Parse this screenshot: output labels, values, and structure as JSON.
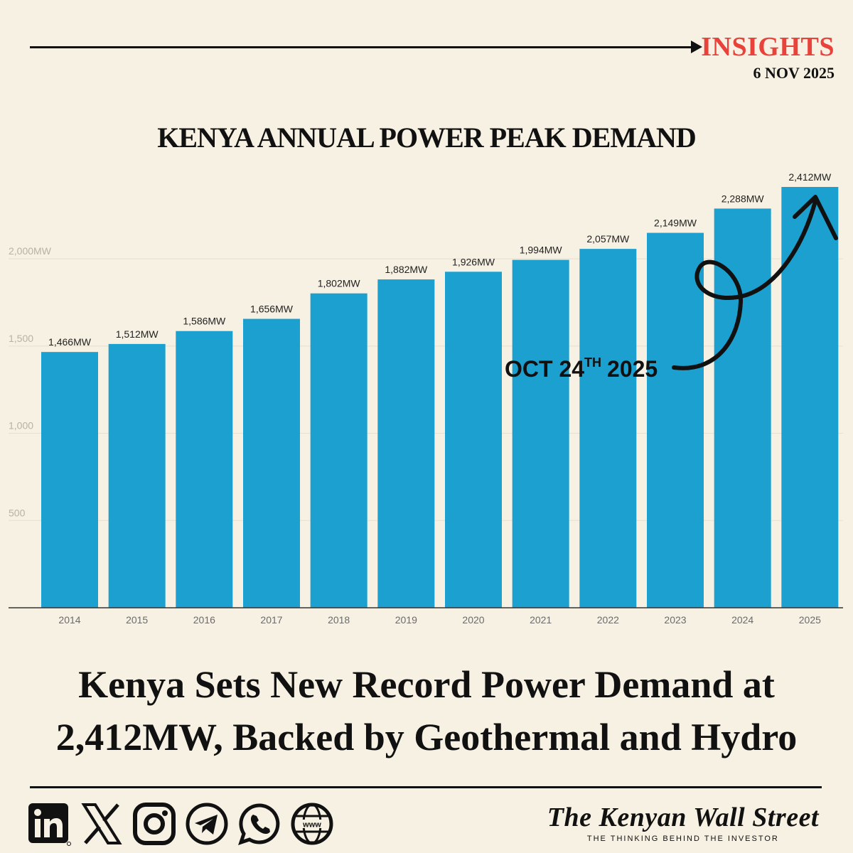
{
  "header": {
    "section": "INSIGHTS",
    "date": "6 NOV 2025"
  },
  "chart_data": {
    "type": "bar",
    "title": "KENYA ANNUAL POWER PEAK DEMAND",
    "categories": [
      "2014",
      "2015",
      "2016",
      "2017",
      "2018",
      "2019",
      "2020",
      "2021",
      "2022",
      "2023",
      "2024",
      "2025"
    ],
    "values": [
      1466,
      1512,
      1586,
      1656,
      1802,
      1882,
      1926,
      1994,
      2057,
      2149,
      2288,
      2412
    ],
    "value_labels": [
      "1,466MW",
      "1,512MW",
      "1,586MW",
      "1,656MW",
      "1,802MW",
      "1,882MW",
      "1,926MW",
      "1,994MW",
      "2,057MW",
      "2,149MW",
      "2,288MW",
      "2,412MW"
    ],
    "yticks": [
      500,
      1000,
      1500,
      2000
    ],
    "ytick_labels": [
      "500",
      "1,000",
      "1,500",
      "2,000MW"
    ],
    "ylim": [
      0,
      2412
    ],
    "xlabel": "",
    "ylabel": "",
    "bar_color": "#1ba0d0",
    "grid": true,
    "annotation": {
      "main": "OCT 24",
      "superscript": "TH",
      "year": "2025",
      "points_to": "2025"
    }
  },
  "headline": {
    "line1": "Kenya Sets New Record Power Demand at",
    "line2": "2,412MW, Backed by Geothermal and Hydro"
  },
  "footer": {
    "socials": [
      "linkedin-icon",
      "x-icon",
      "instagram-icon",
      "telegram-icon",
      "whatsapp-icon",
      "website-icon"
    ],
    "brand_name": "The Kenyan Wall Street",
    "tagline": "THE THINKING BEHIND THE INVESTOR"
  }
}
